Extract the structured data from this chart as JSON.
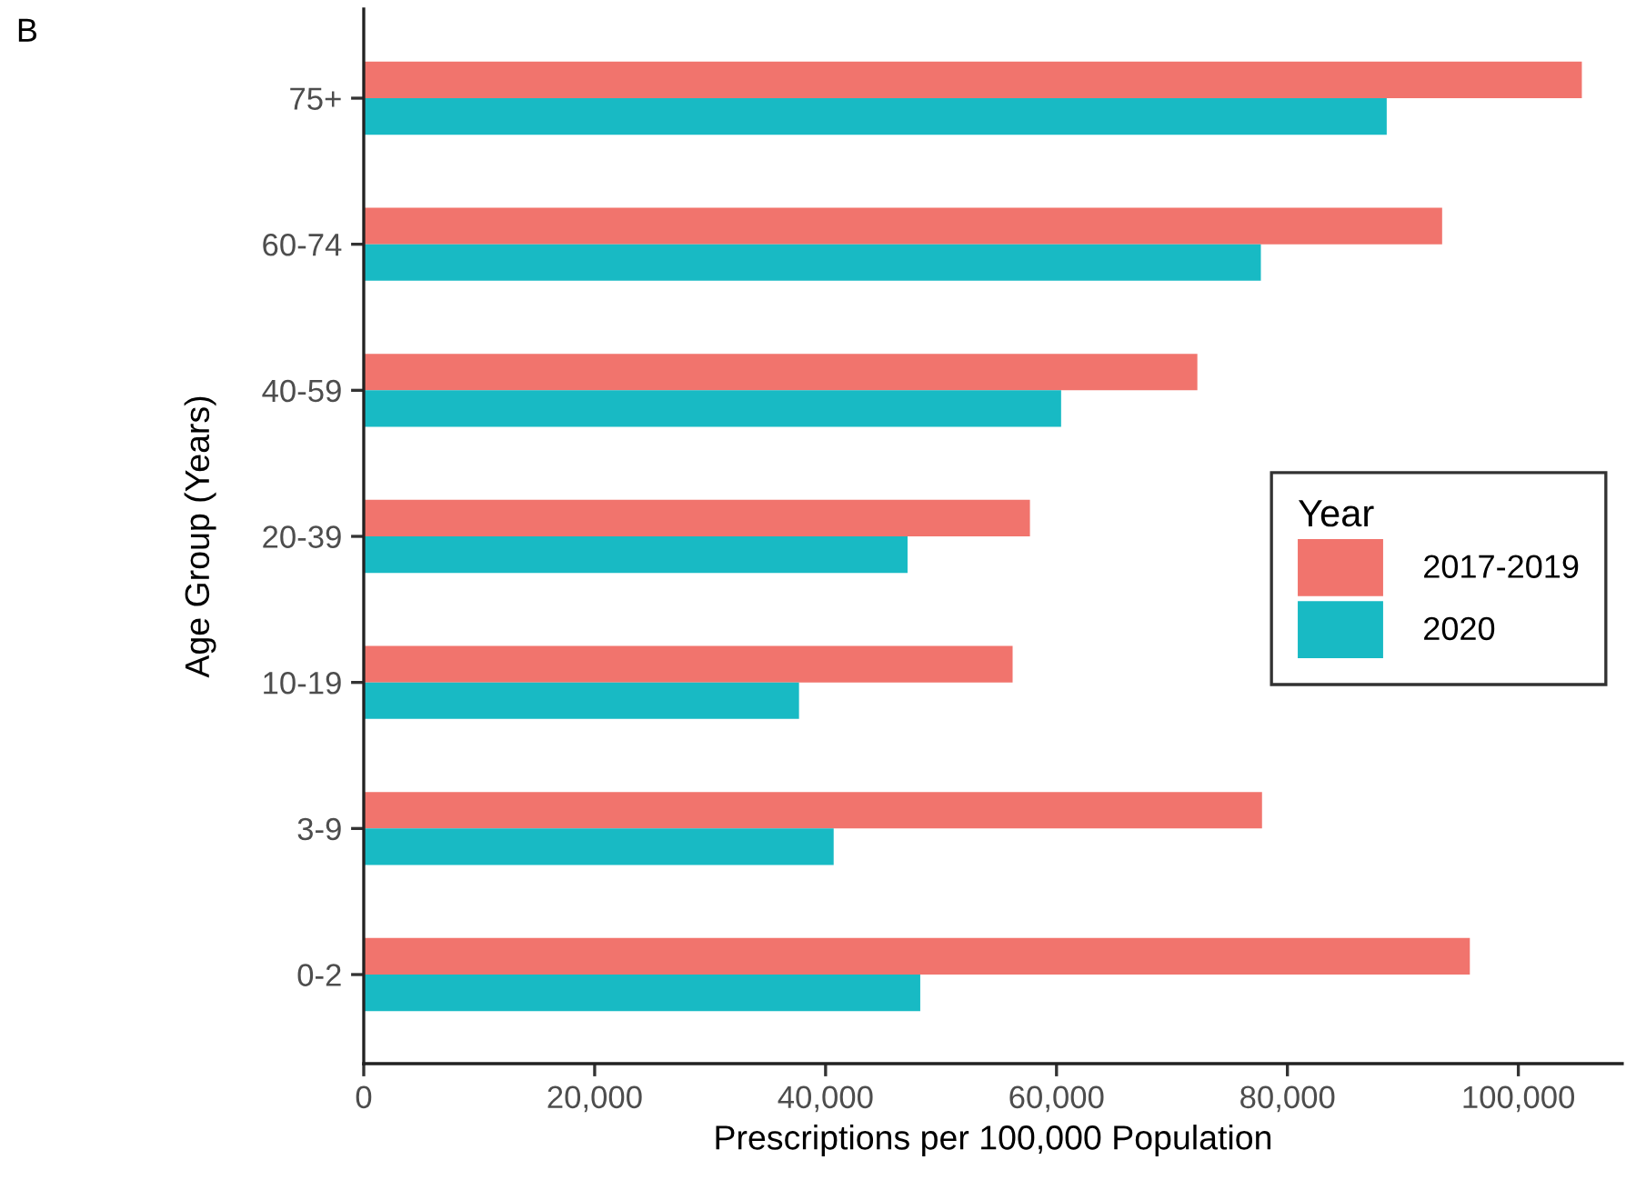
{
  "chart_data": {
    "type": "bar",
    "orientation": "horizontal",
    "xlabel": "Prescriptions per 100,000 Population",
    "ylabel": "Age Group (Years)",
    "legend_title": "Year",
    "annotations": [
      "B"
    ],
    "categories": [
      "75+",
      "60-74",
      "40-59",
      "20-39",
      "10-19",
      "3-9",
      "0-2"
    ],
    "series": [
      {
        "name": "2017-2019",
        "color": "#f1746d",
        "values": [
          105500,
          93400,
          72200,
          57700,
          56200,
          77800,
          95800
        ]
      },
      {
        "name": "2020",
        "color": "#18bac4",
        "values": [
          88600,
          77700,
          60400,
          47100,
          37700,
          40700,
          48200
        ]
      }
    ],
    "xlim": [
      0,
      109000
    ],
    "xticks": [
      0,
      {
        "value": 20000,
        "label": "20,000"
      },
      {
        "value": 40000,
        "label": "40,000"
      },
      {
        "value": 60000,
        "label": "60,000"
      },
      {
        "value": 80000,
        "label": "80,000"
      },
      {
        "value": 100000,
        "label": "100,000"
      }
    ],
    "grid": false,
    "legend": "right"
  }
}
